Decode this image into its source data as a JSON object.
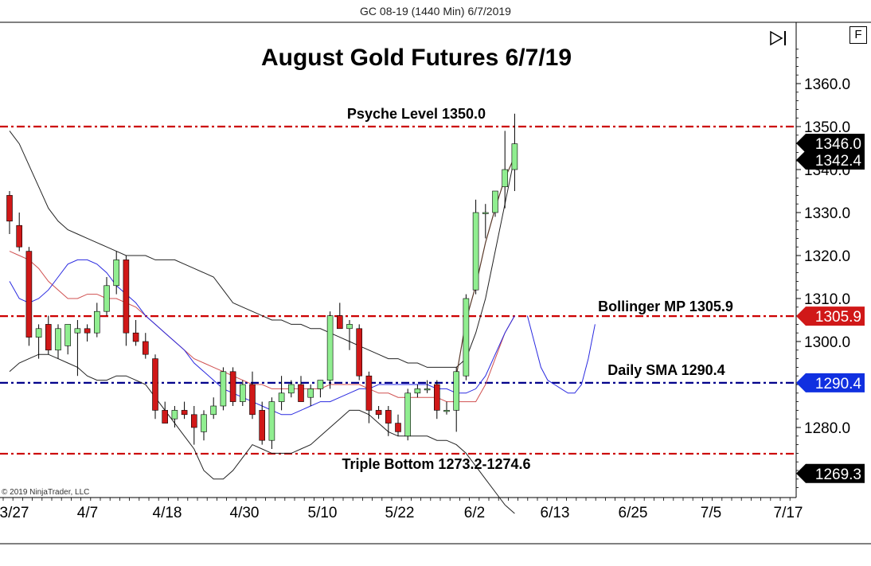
{
  "window": {
    "title": "GC 08-19 (1440 Min)  6/7/2019",
    "f_button_label": "F",
    "copyright": "© 2019 NinjaTrader, LLC"
  },
  "chart_data": {
    "type": "candlestick",
    "title": "August Gold Futures 6/7/19",
    "ylim": [
      1260,
      1370
    ],
    "y_ticks": [
      1280.0,
      1290.0,
      1300.0,
      1310.0,
      1320.0,
      1330.0,
      1340.0,
      1350.0,
      1360.0
    ],
    "y_tick_labels": [
      "1280.0",
      "1290.0",
      "1300.0",
      "1310.0",
      "1320.0",
      "1330.0",
      "1340.0",
      "1350.0",
      "1360.0"
    ],
    "x_tick_labels": [
      "3/27",
      "4/7",
      "4/18",
      "4/30",
      "5/10",
      "5/22",
      "6/2",
      "6/13",
      "6/25",
      "7/5",
      "7/17"
    ],
    "colors": {
      "up_candle": "#90ee90",
      "down_candle": "#d01818",
      "upper_band": "#222222",
      "lower_band": "#222222",
      "middle_line": "#d05050",
      "sma_line": "#2a2ae0",
      "psyche_line": "#cc0000",
      "bollinger_line": "#cc0000",
      "sma_level_line": "#00008b",
      "triple_bottom_line": "#cc0000",
      "price_tag": "#000000",
      "bollinger_tag": "#d01818",
      "sma_tag": "#1030e0"
    },
    "candles": [
      {
        "o": 1334,
        "h": 1335,
        "l": 1325,
        "c": 1328
      },
      {
        "o": 1327,
        "h": 1330,
        "l": 1321,
        "c": 1322
      },
      {
        "o": 1321,
        "h": 1322,
        "l": 1299,
        "c": 1301
      },
      {
        "o": 1301,
        "h": 1304,
        "l": 1296,
        "c": 1303
      },
      {
        "o": 1304,
        "h": 1306,
        "l": 1297,
        "c": 1298
      },
      {
        "o": 1298,
        "h": 1304,
        "l": 1296,
        "c": 1303
      },
      {
        "o": 1299,
        "h": 1304,
        "l": 1297,
        "c": 1304
      },
      {
        "o": 1302,
        "h": 1305,
        "l": 1292,
        "c": 1303
      },
      {
        "o": 1303,
        "h": 1304,
        "l": 1300,
        "c": 1302
      },
      {
        "o": 1302,
        "h": 1309,
        "l": 1301,
        "c": 1307
      },
      {
        "o": 1307,
        "h": 1315,
        "l": 1306,
        "c": 1313
      },
      {
        "o": 1313,
        "h": 1321,
        "l": 1311,
        "c": 1319
      },
      {
        "o": 1319,
        "h": 1320,
        "l": 1299,
        "c": 1302
      },
      {
        "o": 1302,
        "h": 1305,
        "l": 1299,
        "c": 1300
      },
      {
        "o": 1300,
        "h": 1302,
        "l": 1296,
        "c": 1297
      },
      {
        "o": 1296,
        "h": 1297,
        "l": 1282,
        "c": 1284
      },
      {
        "o": 1284,
        "h": 1286,
        "l": 1281,
        "c": 1281
      },
      {
        "o": 1282,
        "h": 1285,
        "l": 1280,
        "c": 1284
      },
      {
        "o": 1284,
        "h": 1286,
        "l": 1282,
        "c": 1283
      },
      {
        "o": 1283,
        "h": 1285,
        "l": 1276,
        "c": 1280
      },
      {
        "o": 1279,
        "h": 1284,
        "l": 1277,
        "c": 1283
      },
      {
        "o": 1283,
        "h": 1287,
        "l": 1282,
        "c": 1285
      },
      {
        "o": 1285,
        "h": 1294,
        "l": 1284,
        "c": 1293
      },
      {
        "o": 1293,
        "h": 1294,
        "l": 1285,
        "c": 1286
      },
      {
        "o": 1286,
        "h": 1291,
        "l": 1285,
        "c": 1290
      },
      {
        "o": 1290,
        "h": 1293,
        "l": 1282,
        "c": 1283
      },
      {
        "o": 1284,
        "h": 1286,
        "l": 1276,
        "c": 1277
      },
      {
        "o": 1277,
        "h": 1287,
        "l": 1275,
        "c": 1286
      },
      {
        "o": 1286,
        "h": 1292,
        "l": 1284,
        "c": 1288
      },
      {
        "o": 1288,
        "h": 1291,
        "l": 1287,
        "c": 1290
      },
      {
        "o": 1290,
        "h": 1292,
        "l": 1287,
        "c": 1286
      },
      {
        "o": 1287,
        "h": 1290,
        "l": 1285,
        "c": 1289
      },
      {
        "o": 1289,
        "h": 1291,
        "l": 1287,
        "c": 1291
      },
      {
        "o": 1291,
        "h": 1307,
        "l": 1289,
        "c": 1306
      },
      {
        "o": 1306,
        "h": 1309,
        "l": 1303,
        "c": 1303
      },
      {
        "o": 1303,
        "h": 1305,
        "l": 1298,
        "c": 1304
      },
      {
        "o": 1303,
        "h": 1304,
        "l": 1291,
        "c": 1292
      },
      {
        "o": 1292,
        "h": 1293,
        "l": 1281,
        "c": 1284
      },
      {
        "o": 1284,
        "h": 1285,
        "l": 1282,
        "c": 1283
      },
      {
        "o": 1284,
        "h": 1285,
        "l": 1278,
        "c": 1281
      },
      {
        "o": 1281,
        "h": 1283,
        "l": 1278,
        "c": 1279
      },
      {
        "o": 1278,
        "h": 1289,
        "l": 1277,
        "c": 1288
      },
      {
        "o": 1288,
        "h": 1290,
        "l": 1287,
        "c": 1289
      },
      {
        "o": 1289,
        "h": 1291,
        "l": 1288,
        "c": 1289
      },
      {
        "o": 1290,
        "h": 1291,
        "l": 1282,
        "c": 1284
      },
      {
        "o": 1284,
        "h": 1286,
        "l": 1283,
        "c": 1284
      },
      {
        "o": 1284,
        "h": 1294,
        "l": 1279,
        "c": 1293
      },
      {
        "o": 1292,
        "h": 1311,
        "l": 1291,
        "c": 1310
      },
      {
        "o": 1312,
        "h": 1333,
        "l": 1311,
        "c": 1330
      },
      {
        "o": 1330,
        "h": 1332,
        "l": 1324,
        "c": 1330
      },
      {
        "o": 1330,
        "h": 1335,
        "l": 1329,
        "c": 1335
      },
      {
        "o": 1336,
        "h": 1349,
        "l": 1331,
        "c": 1340
      },
      {
        "o": 1340,
        "h": 1353,
        "l": 1335,
        "c": 1346
      }
    ],
    "candle_dates_index_start_label": "3/27",
    "upper_band": [
      1349,
      1346,
      1341,
      1336,
      1331,
      1328,
      1326,
      1325,
      1324,
      1323,
      1322,
      1321,
      1320,
      1320,
      1320,
      1319,
      1319,
      1319,
      1318,
      1317,
      1316,
      1315,
      1312,
      1309,
      1308,
      1307,
      1306,
      1305,
      1305,
      1304,
      1304,
      1303,
      1303,
      1302,
      1301,
      1300,
      1299,
      1298,
      1297,
      1296,
      1296,
      1295,
      1295,
      1294,
      1294,
      1294,
      1294,
      1296,
      1302,
      1310,
      1321,
      1332,
      1343
    ],
    "lower_band": [
      1293,
      1295,
      1296,
      1297,
      1297,
      1296,
      1295,
      1294,
      1292,
      1291,
      1291,
      1292,
      1292,
      1291,
      1290,
      1287,
      1284,
      1281,
      1278,
      1275,
      1270,
      1268,
      1268,
      1270,
      1273,
      1276,
      1275,
      1274,
      1274,
      1274,
      1275,
      1276,
      1278,
      1280,
      1282,
      1284,
      1284,
      1283,
      1281,
      1279,
      1278,
      1278,
      1278,
      1278,
      1277,
      1277,
      1276,
      1274,
      1271,
      1268,
      1265,
      1262,
      1260
    ],
    "middle_line": [
      1321,
      1320,
      1319,
      1317,
      1314,
      1312,
      1310,
      1310,
      1311,
      1311,
      1310,
      1310,
      1309,
      1308,
      1306,
      1304,
      1302,
      1300,
      1298,
      1296,
      1295,
      1294,
      1293,
      1292,
      1291,
      1290,
      1290,
      1289,
      1289,
      1289,
      1289,
      1289,
      1289,
      1290,
      1290,
      1290,
      1290,
      1289,
      1288,
      1288,
      1287,
      1287,
      1287,
      1287,
      1287,
      1286,
      1286,
      1286,
      1286,
      1290,
      1296,
      1302,
      1306
    ],
    "sma_line": [
      1314,
      1310,
      1309,
      1310,
      1312,
      1315,
      1318,
      1319,
      1319,
      1318,
      1316,
      1313,
      1311,
      1309,
      1306,
      1304,
      1302,
      1300,
      1298,
      1295,
      1293,
      1291,
      1289,
      1288,
      1287,
      1286,
      1285,
      1284,
      1283,
      1283,
      1284,
      1285,
      1286,
      1286,
      1287,
      1288,
      1289,
      1289,
      1290,
      1290,
      1290,
      1290,
      1290,
      1290,
      1289,
      1289,
      1288,
      1288,
      1289,
      1292,
      1297,
      1302,
      1306
    ],
    "price_line": {
      "name": "",
      "values": [
        1292,
        1305,
        1313,
        1323,
        1331,
        1338,
        1343
      ]
    },
    "levels": [
      {
        "label": "Psyche Level 1350.0",
        "value": 1350.0
      },
      {
        "label": "Bollinger MP 1305.9",
        "value": 1305.9
      },
      {
        "label": "Daily SMA 1290.4",
        "value": 1290.4
      },
      {
        "label": "Triple Bottom 1273.2-1274.6",
        "value": 1273.9
      }
    ],
    "price_tags": [
      {
        "label": "1346.0",
        "value": 1346.0,
        "kind": "price"
      },
      {
        "label": "1342.4",
        "value": 1342.4,
        "kind": "price"
      },
      {
        "label": "1305.9",
        "value": 1305.9,
        "kind": "bollinger"
      },
      {
        "label": "1290.4",
        "value": 1290.4,
        "kind": "sma"
      },
      {
        "label": "1269.3",
        "value": 1269.3,
        "kind": "price"
      }
    ],
    "grid": false,
    "legend": "none"
  }
}
